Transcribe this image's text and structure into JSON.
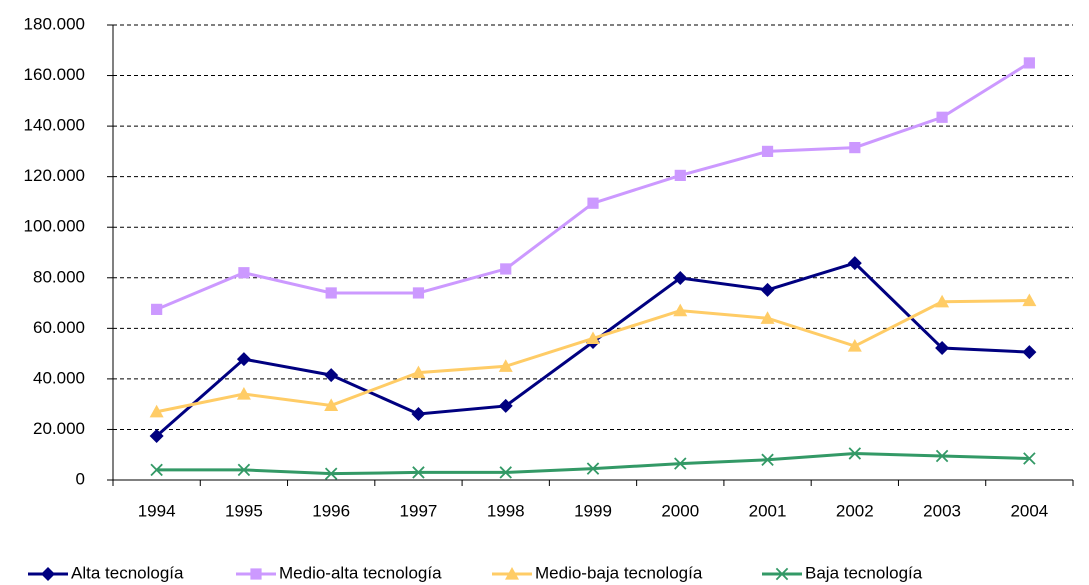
{
  "chart_data": {
    "type": "line",
    "categories": [
      "1994",
      "1995",
      "1996",
      "1997",
      "1998",
      "1999",
      "2000",
      "2001",
      "2002",
      "2003",
      "2004"
    ],
    "series": [
      {
        "name": "Alta tecnología",
        "color": "#000080",
        "marker": "diamond",
        "values": [
          17400,
          47800,
          41500,
          26100,
          29300,
          54600,
          79900,
          75200,
          85800,
          52200,
          50600
        ]
      },
      {
        "name": "Medio-alta tecnología",
        "color": "#cc99ff",
        "marker": "square",
        "values": [
          67500,
          82000,
          74000,
          74000,
          83500,
          109500,
          120500,
          130000,
          131500,
          143500,
          165000
        ]
      },
      {
        "name": "Medio-baja tecnología",
        "color": "#ffcc66",
        "marker": "triangle",
        "values": [
          27000,
          34000,
          29500,
          42500,
          45000,
          56000,
          67000,
          64000,
          53000,
          70500,
          71000
        ]
      },
      {
        "name": "Baja tecnología",
        "color": "#339966",
        "marker": "x",
        "values": [
          4000,
          4000,
          2500,
          3000,
          3000,
          4500,
          6500,
          8000,
          10500,
          9500,
          8500
        ]
      }
    ],
    "ylim": [
      0,
      180000
    ],
    "yticks": [
      0,
      {
        "value": 20000,
        "label": "20.000"
      },
      {
        "value": 40000,
        "label": "40.000"
      },
      {
        "value": 60000,
        "label": "60.000"
      },
      {
        "value": 80000,
        "label": "80.000"
      },
      {
        "value": 100000,
        "label": "100.000"
      },
      {
        "value": 120000,
        "label": "120.000"
      },
      {
        "value": 140000,
        "label": "140.000"
      },
      {
        "value": 160000,
        "label": "160.000"
      },
      {
        "value": 180000,
        "label": "180.000"
      }
    ],
    "grid": true,
    "legend": "bottom"
  }
}
